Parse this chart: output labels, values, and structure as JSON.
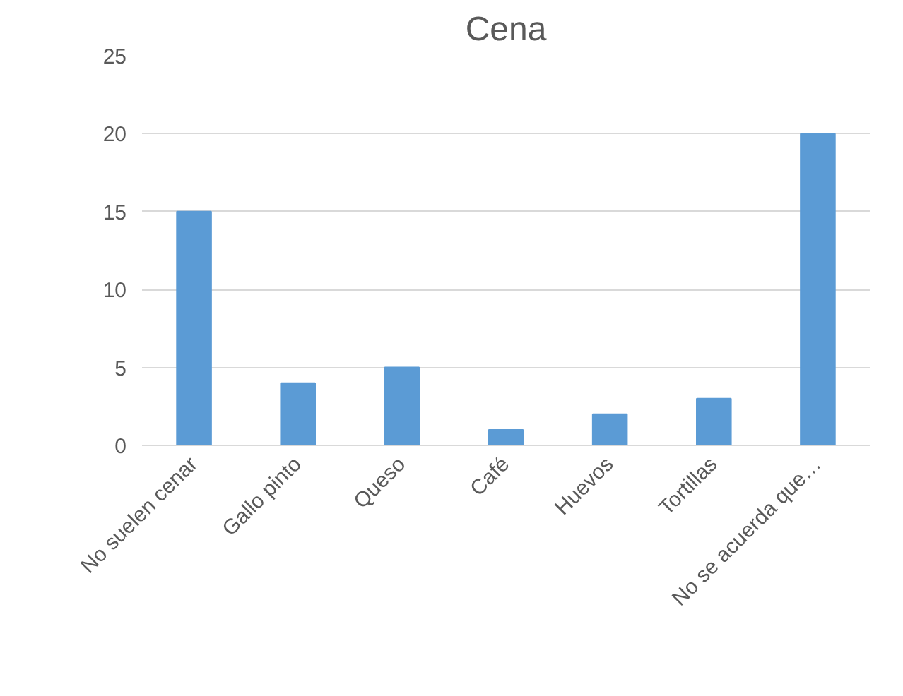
{
  "chart_data": {
    "type": "bar",
    "title": "Cena",
    "categories": [
      "No suelen cenar",
      "Gallo pinto",
      "Queso",
      "Café",
      "Huevos",
      "Tortillas",
      "No se acuerda que…"
    ],
    "values": [
      15,
      4,
      5,
      1,
      2,
      3,
      20
    ],
    "color": "#5b9bd5",
    "ylim": [
      0,
      25
    ],
    "yticks": [
      0,
      5,
      10,
      15,
      20,
      25
    ],
    "grid": "y"
  }
}
